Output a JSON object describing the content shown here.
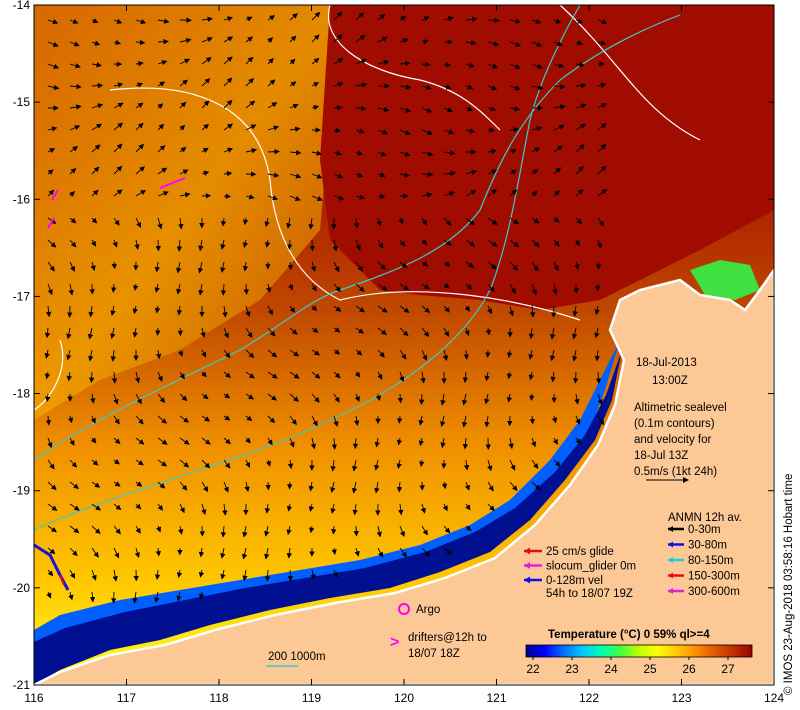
{
  "map": {
    "x_ticks": [
      "116",
      "117",
      "118",
      "119",
      "120",
      "121",
      "122",
      "123",
      "124"
    ],
    "y_ticks": [
      "-14",
      "-15",
      "-16",
      "-17",
      "-18",
      "-19",
      "-20",
      "-21"
    ],
    "xlim": [
      116,
      124
    ],
    "ylim": [
      -21,
      -14
    ]
  },
  "datetime": {
    "date": "18-Jul-2013",
    "time": "13:00Z"
  },
  "altimetry": {
    "lines": [
      "Altimetric sealevel",
      "(0.1m contours)",
      "and velocity for",
      "18-Jul 13Z",
      "0.5m/s (1kt 24h)"
    ]
  },
  "anmn": {
    "title": "ANMN 12h av.",
    "items": [
      {
        "label": "0-30m",
        "color": "#000000"
      },
      {
        "label": "30-80m",
        "color": "#1010e0"
      },
      {
        "label": "80-150m",
        "color": "#20d0d0"
      },
      {
        "label": "150-300m",
        "color": "#e01010"
      },
      {
        "label": "300-600m",
        "color": "#e020e0"
      }
    ]
  },
  "glider_legend": {
    "items": [
      {
        "label": "25 cm/s glide",
        "color": "#e01010"
      },
      {
        "label": "slocum_glider 0m",
        "color": "#e020e0"
      },
      {
        "label": "0-128m vel",
        "color": "#1010e0"
      }
    ],
    "note": "54h to 18/07 19Z"
  },
  "argo": {
    "label": "Argo",
    "color": "#ff00ff"
  },
  "drifters": {
    "lines": [
      "drifters@12h to",
      "18/07 18Z"
    ],
    "color": "#ff00ff"
  },
  "scale": {
    "label": "200 1000m",
    "color": "#40c8c8"
  },
  "colorbar": {
    "title": "Temperature (°C) 0 59% ql>=4",
    "ticks": [
      "22",
      "23",
      "24",
      "25",
      "26",
      "27"
    ],
    "colors": [
      "#000090",
      "#0000ff",
      "#0070ff",
      "#00c8ff",
      "#00ffb0",
      "#40ff40",
      "#c0ff00",
      "#ffff00",
      "#ffc800",
      "#ff8c00",
      "#e05a00",
      "#c03000",
      "#9a0000"
    ]
  },
  "credit": "© IMOS 23-Aug-2018 03:58:16 Hobart time",
  "colors": {
    "land": "#fcc896",
    "warm_water": "#a00c00",
    "coast": "#ffffff"
  }
}
